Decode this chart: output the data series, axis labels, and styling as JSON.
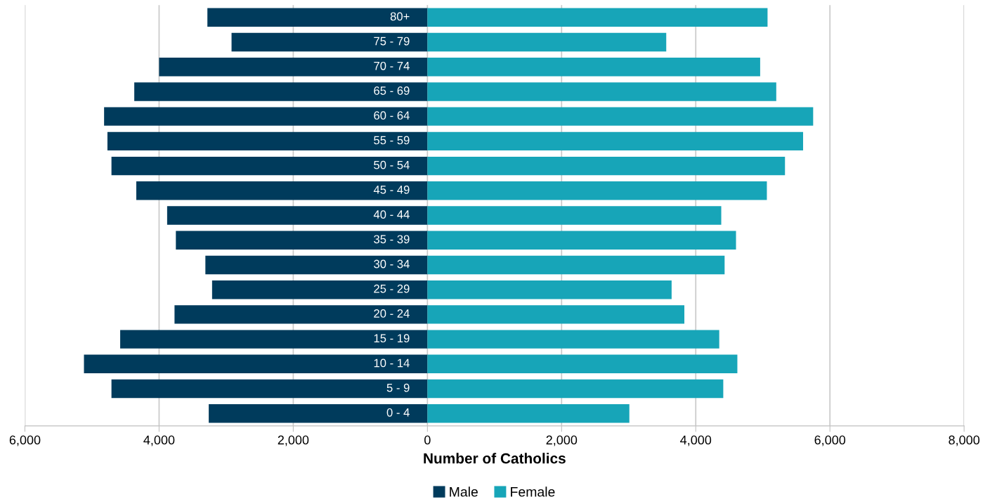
{
  "chart_data": {
    "type": "bar",
    "orientation": "horizontal",
    "stacked": true,
    "xlabel": "Number of Catholics",
    "categories": [
      "80+",
      "75 - 79",
      "70 - 74",
      "65 - 69",
      "60 - 64",
      "55 - 59",
      "50 - 54",
      "45 - 49",
      "40 - 44",
      "35 - 39",
      "30 - 34",
      "25 - 29",
      "20 - 24",
      "15 - 19",
      "10 - 14",
      "5 - 9",
      "0 - 4"
    ],
    "series": [
      {
        "name": "Male",
        "color": "#003b5c",
        "values": [
          -3280,
          -2920,
          -4000,
          -4370,
          -4820,
          -4770,
          -4710,
          -4340,
          -3880,
          -3750,
          -3310,
          -3210,
          -3770,
          -4580,
          -5120,
          -4710,
          -3260
        ]
      },
      {
        "name": "Female",
        "color": "#17a5b8",
        "values": [
          5070,
          3560,
          4960,
          5200,
          5750,
          5600,
          5330,
          5060,
          4380,
          4600,
          4430,
          3640,
          3830,
          4350,
          4620,
          4410,
          3010
        ]
      }
    ],
    "xlim": [
      -6000,
      8000
    ],
    "xticks": [
      {
        "value": -6000,
        "label": "6,000"
      },
      {
        "value": -4000,
        "label": "4,000"
      },
      {
        "value": -2000,
        "label": "2,000"
      },
      0,
      {
        "value": 2000,
        "label": "2,000"
      },
      {
        "value": 4000,
        "label": "4,000"
      },
      {
        "value": 6000,
        "label": "6,000"
      },
      {
        "value": 8000,
        "label": "8,000"
      }
    ],
    "grid": "x",
    "legend": "bottom"
  }
}
